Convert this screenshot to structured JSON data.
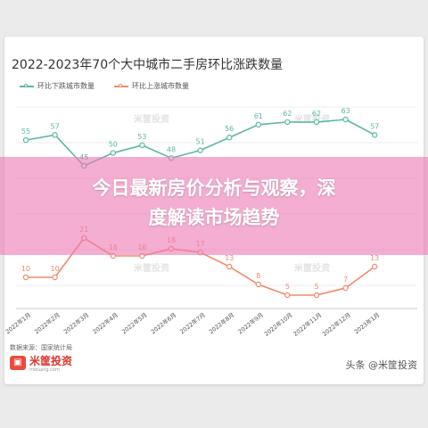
{
  "banner": {
    "line1": "今日最新房价分析与观察，深",
    "line2": "度解读市场趋势"
  },
  "watermark": "米筐投资",
  "source": "数据来源：国家统计局",
  "logo": {
    "name": "米筐投资",
    "url": "mikuang.com"
  },
  "attribution": "头条 @米筐投资",
  "chart_data": {
    "type": "line",
    "title": "2022-2023年70个大中城市二手房环比涨跌数量",
    "categories": [
      "2022年1月",
      "2022年2月",
      "2022年3月",
      "2022年4月",
      "2022年5月",
      "2022年6月",
      "2022年7月",
      "2022年8月",
      "2022年9月",
      "2022年10月",
      "2022年11月",
      "2022年12月",
      "2023年1月"
    ],
    "series": [
      {
        "name": "环比下跌城市数量",
        "color": "#5ab7a8",
        "values": [
          55,
          57,
          45,
          50,
          53,
          48,
          51,
          56,
          61,
          62,
          62,
          63,
          57
        ]
      },
      {
        "name": "环比上涨城市数量",
        "color": "#f08a6a",
        "values": [
          10,
          10,
          21,
          16,
          16,
          18,
          17,
          13,
          8,
          5,
          5,
          7,
          13
        ]
      }
    ],
    "grid": true,
    "legend": "top-left"
  }
}
